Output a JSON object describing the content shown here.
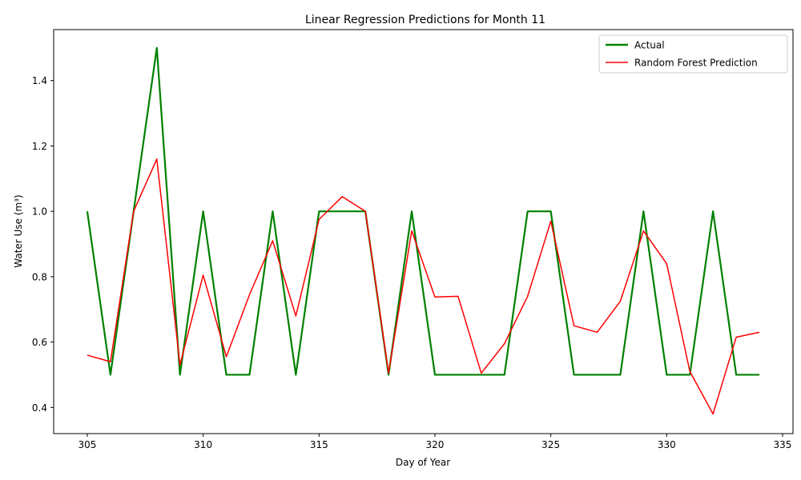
{
  "chart_data": {
    "type": "line",
    "title": "Linear Regression Predictions for Month 11",
    "xlabel": "Day of Year",
    "ylabel": "Water Use (m³)",
    "xlim": [
      303.55,
      335.45
    ],
    "ylim": [
      0.32,
      1.556
    ],
    "xticks": [
      305,
      310,
      315,
      320,
      325,
      330,
      335
    ],
    "yticks": [
      0.4,
      0.6,
      0.8,
      1.0,
      1.2,
      1.4
    ],
    "grid": false,
    "legend_position": "upper right",
    "x": [
      305,
      306,
      307,
      308,
      309,
      310,
      311,
      312,
      313,
      314,
      315,
      316,
      317,
      318,
      319,
      320,
      321,
      322,
      323,
      324,
      325,
      326,
      327,
      328,
      329,
      330,
      331,
      332,
      333,
      334
    ],
    "series": [
      {
        "name": "Actual",
        "color": "#008000",
        "line_width": "thick",
        "values": [
          1.0,
          0.5,
          1.0,
          1.5,
          0.5,
          1.0,
          0.5,
          0.5,
          1.0,
          0.5,
          1.0,
          1.0,
          1.0,
          0.5,
          1.0,
          0.5,
          0.5,
          0.5,
          0.5,
          1.0,
          1.0,
          0.5,
          0.5,
          0.5,
          1.0,
          0.5,
          0.5,
          1.0,
          0.5,
          0.5
        ]
      },
      {
        "name": "Random Forest Prediction",
        "color": "#ff0000",
        "line_width": "normal",
        "values": [
          0.56,
          0.54,
          1.0,
          1.16,
          0.53,
          0.805,
          0.555,
          0.745,
          0.91,
          0.68,
          0.975,
          1.045,
          1.0,
          0.505,
          0.94,
          0.738,
          0.74,
          0.505,
          0.595,
          0.74,
          0.97,
          0.65,
          0.63,
          0.725,
          0.94,
          0.84,
          0.51,
          0.38,
          0.615,
          0.63
        ]
      }
    ]
  }
}
